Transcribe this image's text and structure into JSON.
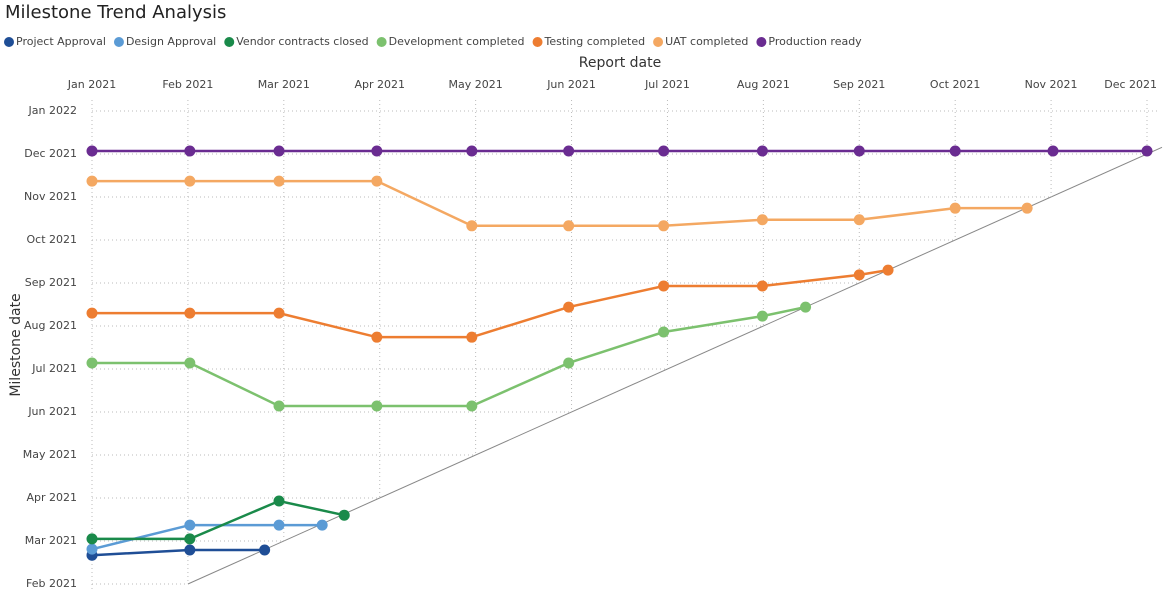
{
  "chart_data": {
    "type": "line",
    "title": "Milestone Trend Analysis",
    "x_label": "Report date",
    "y_label": "Milestone date",
    "xlim": [
      0,
      11
    ],
    "ylim": [
      1,
      12
    ],
    "xticks": [
      {
        "value": 0,
        "label": "Jan 2021"
      },
      {
        "value": 1,
        "label": "Feb 2021"
      },
      {
        "value": 2,
        "label": "Mar 2021"
      },
      {
        "value": 3,
        "label": "Apr 2021"
      },
      {
        "value": 4,
        "label": "May 2021"
      },
      {
        "value": 5,
        "label": "Jun 2021"
      },
      {
        "value": 6,
        "label": "Jul 2021"
      },
      {
        "value": 7,
        "label": "Aug 2021"
      },
      {
        "value": 8,
        "label": "Sep 2021"
      },
      {
        "value": 9,
        "label": "Oct 2021"
      },
      {
        "value": 10,
        "label": "Nov 2021"
      },
      {
        "value": 11,
        "label": "Dec 2021"
      }
    ],
    "yticks": [
      {
        "value": 1,
        "label": "Feb 2021"
      },
      {
        "value": 2,
        "label": "Mar 2021"
      },
      {
        "value": 3,
        "label": "Apr 2021"
      },
      {
        "value": 4,
        "label": "May 2021"
      },
      {
        "value": 5,
        "label": "Jun 2021"
      },
      {
        "value": 6,
        "label": "Jul 2021"
      },
      {
        "value": 7,
        "label": "Aug 2021"
      },
      {
        "value": 8,
        "label": "Sep 2021"
      },
      {
        "value": 9,
        "label": "Oct 2021"
      },
      {
        "value": 10,
        "label": "Nov 2021"
      },
      {
        "value": 11,
        "label": "Dec 2021"
      },
      {
        "value": 12,
        "label": "Jan 2022"
      }
    ],
    "grid": true,
    "series": [
      {
        "name": "Project Approval",
        "color": "#1f4e96",
        "x": [
          0,
          1.02,
          1.8
        ],
        "values": [
          1.67,
          1.79,
          1.79
        ]
      },
      {
        "name": "Design Approval",
        "color": "#5b9bd5",
        "x": [
          0,
          1.02,
          1.95,
          2.4
        ],
        "values": [
          1.81,
          2.37,
          2.37,
          2.37
        ]
      },
      {
        "name": "Vendor contracts closed",
        "color": "#1a8a4a",
        "x": [
          0,
          1.02,
          1.95,
          2.63
        ],
        "values": [
          2.05,
          2.05,
          2.93,
          2.6
        ]
      },
      {
        "name": "Development completed",
        "color": "#7cc16e",
        "x": [
          0,
          1.02,
          1.95,
          2.97,
          3.96,
          4.97,
          5.96,
          6.99,
          7.44
        ],
        "values": [
          6.14,
          6.14,
          5.14,
          5.14,
          5.14,
          6.14,
          6.86,
          7.23,
          7.44
        ]
      },
      {
        "name": "Testing completed",
        "color": "#ed7d31",
        "x": [
          0,
          1.02,
          1.95,
          2.97,
          3.96,
          4.97,
          5.96,
          6.99,
          8.0,
          8.3
        ],
        "values": [
          7.3,
          7.3,
          7.3,
          6.74,
          6.74,
          7.44,
          7.93,
          7.93,
          8.19,
          8.3
        ]
      },
      {
        "name": "UAT completed",
        "color": "#f4a862",
        "x": [
          0,
          1.02,
          1.95,
          2.97,
          3.96,
          4.97,
          5.96,
          6.99,
          8.0,
          9.0,
          9.75
        ],
        "values": [
          10.37,
          10.37,
          10.37,
          10.37,
          9.33,
          9.33,
          9.33,
          9.47,
          9.47,
          9.74,
          9.74
        ]
      },
      {
        "name": "Production ready",
        "color": "#6a2c91",
        "x": [
          0,
          1.02,
          1.95,
          2.97,
          3.96,
          4.97,
          5.96,
          6.99,
          8.0,
          9.0,
          10.02,
          11
        ],
        "values": [
          11.07,
          11.07,
          11.07,
          11.07,
          11.07,
          11.07,
          11.07,
          11.07,
          11.07,
          11.07,
          11.07,
          11.07
        ]
      }
    ]
  }
}
